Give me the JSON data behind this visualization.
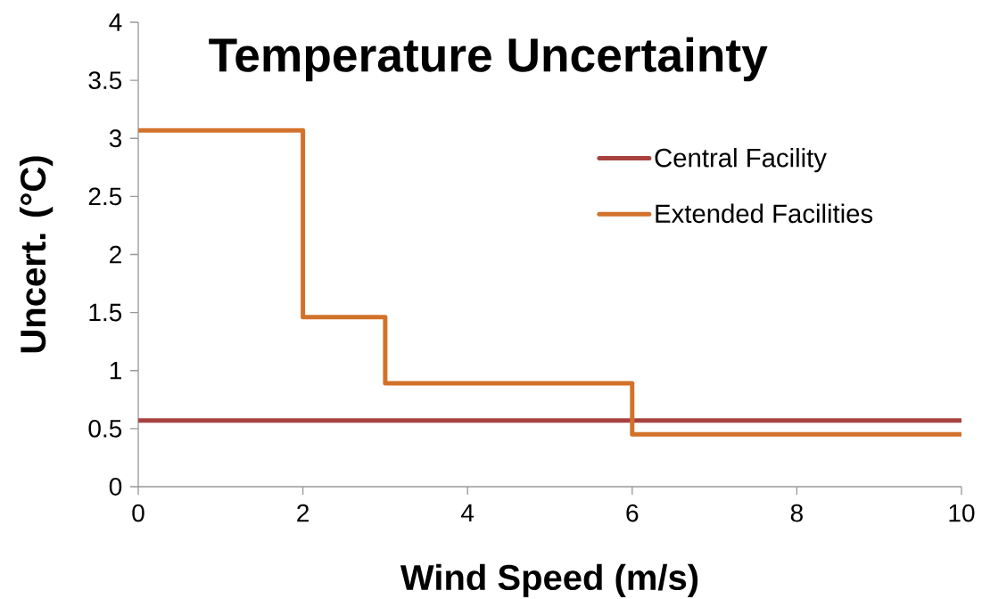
{
  "chart_data": {
    "type": "line",
    "title": "Temperature Uncertainty",
    "xlabel": "Wind Speed (m/s)",
    "ylabel": "Uncert. (°C)",
    "xlim": [
      0,
      10
    ],
    "xticks": [
      0,
      2,
      4,
      6,
      8,
      10
    ],
    "ylim": [
      0,
      4
    ],
    "yticks": [
      0,
      0.5,
      1,
      1.5,
      2,
      2.5,
      3,
      3.5,
      4
    ],
    "legend": "right",
    "series": [
      {
        "name": "Central Facility",
        "type": "line",
        "color": "#a8423f",
        "x": [
          0,
          10
        ],
        "values": [
          0.57,
          0.57
        ]
      },
      {
        "name": "Extended Facilities",
        "type": "step",
        "color": "#d2722a",
        "x": [
          0,
          2,
          3,
          6,
          10
        ],
        "values": [
          3.07,
          1.46,
          0.89,
          0.45,
          0.45
        ]
      }
    ]
  }
}
